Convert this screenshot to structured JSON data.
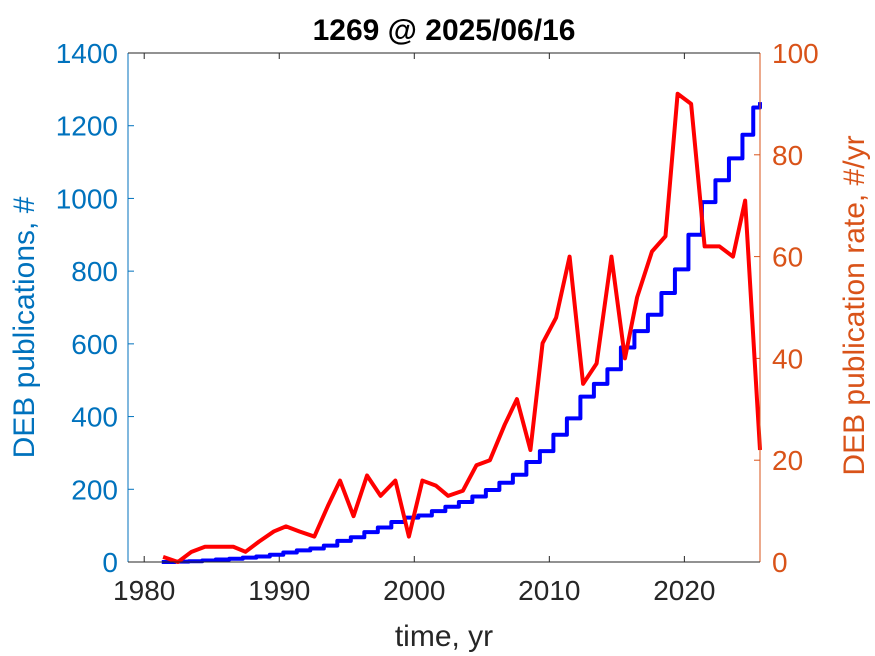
{
  "chart_data": {
    "type": "line",
    "title": "1269 @ 2025/06/16",
    "xlabel": "time, yr",
    "ylabel_left": "DEB publications, #",
    "ylabel_right": "DEB publication rate, #/yr",
    "xlim": [
      1978.8,
      2025.6
    ],
    "ylim_left": [
      0,
      1400
    ],
    "ylim_right": [
      0,
      100
    ],
    "x_ticks": [
      1980,
      1990,
      2000,
      2010,
      2020
    ],
    "y_ticks_left": [
      0,
      200,
      400,
      600,
      800,
      1000,
      1200,
      1400
    ],
    "y_ticks_right": [
      0,
      20,
      40,
      60,
      80,
      100
    ],
    "grid": false,
    "colors": {
      "left_axis": "#0072BD",
      "right_axis": "#D95319",
      "cumulative_series": "#0000FF",
      "rate_series": "#FF0000"
    },
    "series": [
      {
        "axis": "left",
        "style": "stairs",
        "color": "#0000FF",
        "points": [
          [
            1981.3,
            0
          ],
          [
            1982.3,
            1
          ],
          [
            1983.3,
            2
          ],
          [
            1984.3,
            4
          ],
          [
            1985.3,
            7
          ],
          [
            1986.3,
            9
          ],
          [
            1987.3,
            12
          ],
          [
            1988.3,
            15
          ],
          [
            1989.3,
            20
          ],
          [
            1990.3,
            26
          ],
          [
            1991.3,
            32
          ],
          [
            1992.3,
            37
          ],
          [
            1993.3,
            45
          ],
          [
            1994.3,
            58
          ],
          [
            1995.3,
            68
          ],
          [
            1996.3,
            82
          ],
          [
            1997.3,
            95
          ],
          [
            1998.3,
            110
          ],
          [
            1999.3,
            122
          ],
          [
            2000.3,
            128
          ],
          [
            2001.3,
            140
          ],
          [
            2002.3,
            152
          ],
          [
            2003.3,
            165
          ],
          [
            2004.3,
            180
          ],
          [
            2005.3,
            198
          ],
          [
            2006.3,
            218
          ],
          [
            2007.3,
            240
          ],
          [
            2008.3,
            275
          ],
          [
            2009.3,
            305
          ],
          [
            2010.3,
            350
          ],
          [
            2011.3,
            395
          ],
          [
            2012.3,
            455
          ],
          [
            2013.3,
            490
          ],
          [
            2014.3,
            530
          ],
          [
            2015.3,
            590
          ],
          [
            2016.3,
            635
          ],
          [
            2017.3,
            680
          ],
          [
            2018.3,
            740
          ],
          [
            2019.3,
            805
          ],
          [
            2020.3,
            900
          ],
          [
            2021.3,
            990
          ],
          [
            2022.3,
            1050
          ],
          [
            2023.3,
            1110
          ],
          [
            2024.3,
            1175
          ],
          [
            2025.1,
            1250
          ],
          [
            2025.6,
            1265
          ]
        ]
      },
      {
        "axis": "right",
        "style": "line",
        "color": "#FF0000",
        "points": [
          [
            1981.4,
            1
          ],
          [
            1982.5,
            0
          ],
          [
            1983.5,
            2
          ],
          [
            1984.5,
            3
          ],
          [
            1985.6,
            3
          ],
          [
            1986.6,
            3
          ],
          [
            1987.5,
            2
          ],
          [
            1988.5,
            4
          ],
          [
            1989.6,
            6
          ],
          [
            1990.5,
            7
          ],
          [
            1991.5,
            6
          ],
          [
            1992.6,
            5
          ],
          [
            1993.6,
            11
          ],
          [
            1994.5,
            16
          ],
          [
            1995.5,
            9
          ],
          [
            1996.5,
            17
          ],
          [
            1997.5,
            13
          ],
          [
            1998.6,
            16
          ],
          [
            1999.6,
            5
          ],
          [
            2000.6,
            16
          ],
          [
            2001.6,
            15
          ],
          [
            2002.5,
            13
          ],
          [
            2003.6,
            14
          ],
          [
            2004.6,
            19
          ],
          [
            2005.6,
            20
          ],
          [
            2006.7,
            27
          ],
          [
            2007.6,
            32
          ],
          [
            2008.6,
            22
          ],
          [
            2009.5,
            43
          ],
          [
            2010.5,
            48
          ],
          [
            2011.5,
            60
          ],
          [
            2012.5,
            35
          ],
          [
            2013.5,
            39
          ],
          [
            2014.6,
            60
          ],
          [
            2015.6,
            40
          ],
          [
            2016.5,
            52
          ],
          [
            2017.6,
            61
          ],
          [
            2018.6,
            64
          ],
          [
            2019.5,
            92
          ],
          [
            2020.5,
            90
          ],
          [
            2021.5,
            62
          ],
          [
            2022.6,
            62
          ],
          [
            2023.6,
            60
          ],
          [
            2024.5,
            71
          ],
          [
            2025.6,
            22
          ]
        ]
      }
    ]
  }
}
